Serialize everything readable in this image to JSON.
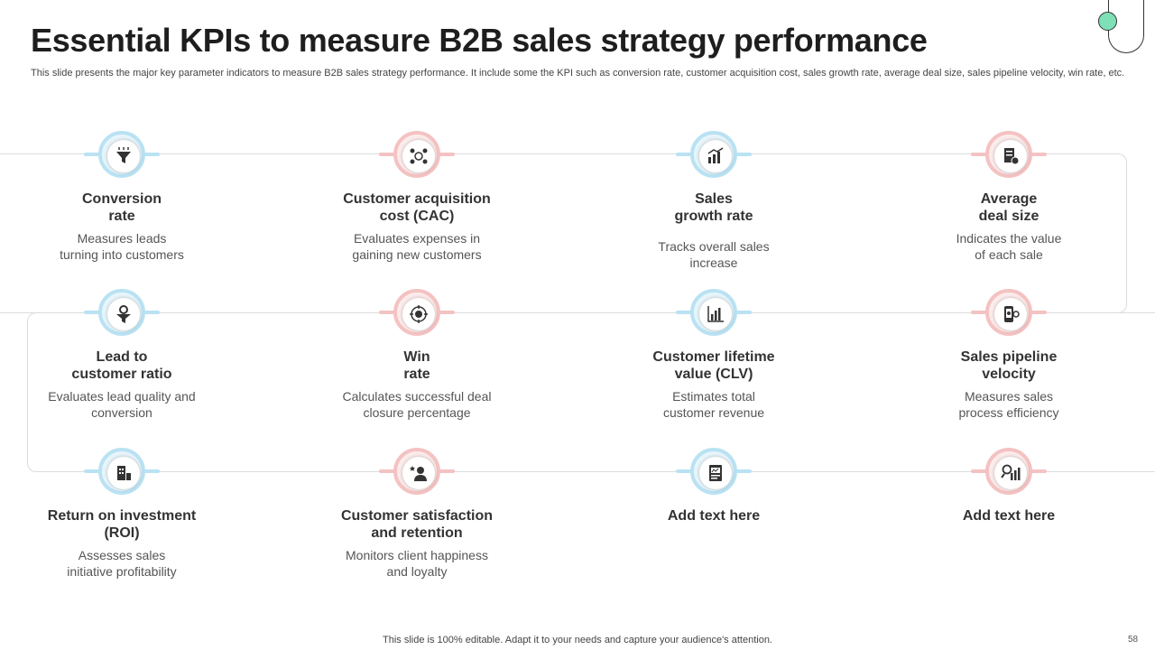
{
  "header": {
    "title": "Essential KPIs to measure B2B sales strategy performance",
    "subtitle": "This slide presents the major key parameter indicators to measure B2B sales strategy performance. It include some the KPI such as conversion rate, customer acquisition cost, sales growth rate, average deal size, sales pipeline velocity,  win rate, etc."
  },
  "colors": {
    "blue": "#b9e2f3",
    "pink": "#f4c2c2",
    "accent_dot": "#7ee0b6"
  },
  "kpis": [
    {
      "title": "Conversion\nrate",
      "desc": "Measures leads\nturning into customers",
      "icon": "funnel-icon"
    },
    {
      "title": "Customer acquisition\ncost (CAC)",
      "desc": "Evaluates expenses in\ngaining new customers",
      "icon": "customer-group-icon"
    },
    {
      "title": "Sales\ngrowth rate",
      "desc": "Tracks overall sales\nincrease",
      "icon": "growth-chart-icon"
    },
    {
      "title": "Average\ndeal size",
      "desc": "Indicates the value\nof each sale",
      "icon": "deal-document-icon"
    },
    {
      "title": "Lead to\ncustomer ratio",
      "desc": "Evaluates lead quality and\nconversion",
      "icon": "lead-funnel-gear-icon"
    },
    {
      "title": "Win\nrate",
      "desc": "Calculates successful deal\nclosure percentage",
      "icon": "target-icon"
    },
    {
      "title": "Customer lifetime\nvalue (CLV)",
      "desc": "Estimates total\ncustomer revenue",
      "icon": "bar-chart-icon"
    },
    {
      "title": "Sales pipeline\nvelocity",
      "desc": "Measures sales\nprocess efficiency",
      "icon": "mobile-analytics-icon"
    },
    {
      "title": "Return on investment\n(ROI)",
      "desc": "Assesses sales\ninitiative profitability",
      "icon": "money-building-icon"
    },
    {
      "title": "Customer satisfaction\nand retention",
      "desc": "Monitors client happiness\nand loyalty",
      "icon": "satisfied-customer-icon"
    },
    {
      "title": "Add text here",
      "desc": "",
      "icon": "report-icon"
    },
    {
      "title": "Add text here",
      "desc": "",
      "icon": "magnifier-chart-icon"
    }
  ],
  "footer": {
    "note": "This slide is 100% editable. Adapt it to your needs and capture your audience's attention.",
    "page_number": "58"
  }
}
